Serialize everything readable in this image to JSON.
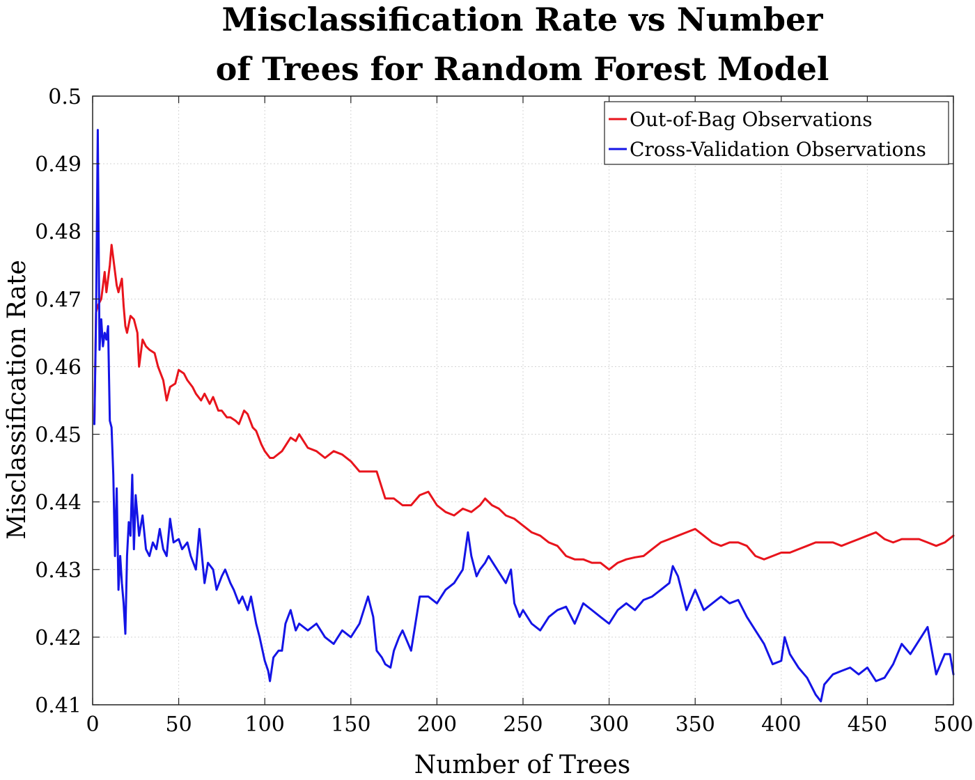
{
  "chart_data": {
    "type": "line",
    "title": [
      "Misclassification Rate vs Number",
      "of Trees for Random Forest Model"
    ],
    "xlabel": "Number of Trees",
    "ylabel": "Misclassification Rate",
    "xlim": [
      0,
      500
    ],
    "ylim": [
      0.41,
      0.5
    ],
    "x_ticks": [
      0,
      50,
      100,
      150,
      200,
      250,
      300,
      350,
      400,
      450,
      500
    ],
    "x_tick_labels": [
      "0",
      "50",
      "100",
      "150",
      "200",
      "250",
      "300",
      "350",
      "400",
      "450",
      "500"
    ],
    "y_ticks": [
      0.41,
      0.42,
      0.43,
      0.44,
      0.45,
      0.46,
      0.47,
      0.48,
      0.49,
      0.5
    ],
    "y_tick_labels": [
      "0.41",
      "0.42",
      "0.43",
      "0.44",
      "0.45",
      "0.46",
      "0.47",
      "0.48",
      "0.49",
      "0.5"
    ],
    "grid": true,
    "legend_position": "top-right",
    "series": [
      {
        "name": "Out-of-Bag Observations",
        "color": "#e8141c",
        "x": [
          1,
          2,
          3,
          5,
          7,
          8,
          10,
          11,
          12,
          14,
          15,
          17,
          18,
          19,
          20,
          22,
          24,
          26,
          27,
          29,
          31,
          33,
          36,
          38,
          41,
          43,
          45,
          48,
          50,
          53,
          55,
          58,
          60,
          63,
          65,
          68,
          70,
          73,
          75,
          78,
          80,
          83,
          85,
          88,
          90,
          93,
          95,
          98,
          100,
          103,
          105,
          110,
          115,
          118,
          120,
          125,
          130,
          135,
          140,
          145,
          150,
          155,
          160,
          165,
          170,
          175,
          180,
          185,
          190,
          195,
          200,
          205,
          210,
          215,
          220,
          225,
          228,
          232,
          236,
          240,
          245,
          250,
          255,
          260,
          265,
          270,
          275,
          280,
          285,
          290,
          295,
          300,
          305,
          310,
          315,
          320,
          325,
          330,
          335,
          340,
          345,
          350,
          355,
          360,
          365,
          370,
          375,
          380,
          385,
          390,
          395,
          400,
          405,
          410,
          415,
          420,
          425,
          430,
          435,
          440,
          445,
          450,
          455,
          460,
          465,
          470,
          475,
          480,
          485,
          490,
          495,
          500
        ],
        "y": [
          0.452,
          0.468,
          0.469,
          0.47,
          0.474,
          0.471,
          0.475,
          0.478,
          0.476,
          0.472,
          0.471,
          0.473,
          0.469,
          0.466,
          0.465,
          0.4675,
          0.467,
          0.465,
          0.46,
          0.464,
          0.463,
          0.4625,
          0.462,
          0.46,
          0.458,
          0.455,
          0.457,
          0.4575,
          0.4595,
          0.459,
          0.458,
          0.457,
          0.456,
          0.455,
          0.456,
          0.4545,
          0.4555,
          0.4535,
          0.4535,
          0.4525,
          0.4525,
          0.452,
          0.4515,
          0.4535,
          0.453,
          0.451,
          0.4505,
          0.4485,
          0.4475,
          0.4465,
          0.4465,
          0.4475,
          0.4495,
          0.449,
          0.45,
          0.448,
          0.4475,
          0.4465,
          0.4475,
          0.447,
          0.446,
          0.4445,
          0.4445,
          0.4445,
          0.4405,
          0.4405,
          0.4395,
          0.4395,
          0.441,
          0.4415,
          0.4395,
          0.4385,
          0.438,
          0.439,
          0.4385,
          0.4395,
          0.4405,
          0.4395,
          0.439,
          0.438,
          0.4375,
          0.4365,
          0.4355,
          0.435,
          0.434,
          0.4335,
          0.432,
          0.4315,
          0.4315,
          0.431,
          0.431,
          0.43,
          0.431,
          0.4315,
          0.4318,
          0.432,
          0.433,
          0.434,
          0.4345,
          0.435,
          0.4355,
          0.436,
          0.435,
          0.434,
          0.4335,
          0.434,
          0.434,
          0.4335,
          0.432,
          0.4315,
          0.432,
          0.4325,
          0.4325,
          0.433,
          0.4335,
          0.434,
          0.434,
          0.434,
          0.4335,
          0.434,
          0.4345,
          0.435,
          0.4355,
          0.4345,
          0.434,
          0.4345,
          0.4345,
          0.4345,
          0.434,
          0.4335,
          0.434,
          0.435
        ]
      },
      {
        "name": "Cross-Validation Observations",
        "color": "#1414e6",
        "x": [
          1,
          2,
          3,
          4,
          5,
          6,
          7,
          8,
          9,
          10,
          11,
          12,
          13,
          14,
          15,
          16,
          17,
          18,
          19,
          20,
          21,
          22,
          23,
          24,
          25,
          27,
          29,
          31,
          33,
          35,
          37,
          39,
          41,
          43,
          45,
          47,
          50,
          52,
          55,
          57,
          60,
          62,
          65,
          67,
          70,
          72,
          75,
          77,
          80,
          82,
          85,
          87,
          90,
          92,
          95,
          97,
          100,
          102,
          103,
          105,
          108,
          110,
          112,
          115,
          118,
          120,
          125,
          130,
          135,
          140,
          145,
          150,
          155,
          160,
          163,
          165,
          168,
          170,
          173,
          175,
          178,
          180,
          185,
          190,
          195,
          200,
          205,
          210,
          215,
          218,
          220,
          223,
          225,
          228,
          230,
          235,
          240,
          243,
          245,
          248,
          250,
          255,
          260,
          265,
          270,
          275,
          280,
          285,
          290,
          295,
          300,
          305,
          310,
          315,
          320,
          325,
          330,
          335,
          337,
          340,
          345,
          350,
          355,
          360,
          365,
          370,
          375,
          380,
          385,
          390,
          395,
          400,
          402,
          405,
          410,
          415,
          420,
          423,
          425,
          430,
          435,
          440,
          445,
          450,
          455,
          460,
          465,
          470,
          475,
          480,
          485,
          490,
          495,
          498,
          500
        ],
        "y": [
          0.4515,
          0.467,
          0.495,
          0.4625,
          0.467,
          0.463,
          0.465,
          0.464,
          0.466,
          0.452,
          0.451,
          0.444,
          0.432,
          0.442,
          0.427,
          0.432,
          0.428,
          0.425,
          0.4205,
          0.432,
          0.437,
          0.435,
          0.444,
          0.433,
          0.441,
          0.435,
          0.438,
          0.433,
          0.432,
          0.434,
          0.433,
          0.436,
          0.433,
          0.432,
          0.4375,
          0.434,
          0.4345,
          0.433,
          0.434,
          0.432,
          0.43,
          0.436,
          0.428,
          0.431,
          0.43,
          0.427,
          0.429,
          0.43,
          0.428,
          0.427,
          0.425,
          0.426,
          0.424,
          0.426,
          0.422,
          0.42,
          0.4165,
          0.415,
          0.4135,
          0.417,
          0.418,
          0.418,
          0.422,
          0.424,
          0.421,
          0.422,
          0.421,
          0.422,
          0.42,
          0.419,
          0.421,
          0.42,
          0.422,
          0.426,
          0.423,
          0.418,
          0.417,
          0.416,
          0.4155,
          0.418,
          0.42,
          0.421,
          0.418,
          0.426,
          0.426,
          0.425,
          0.427,
          0.428,
          0.43,
          0.4355,
          0.432,
          0.429,
          0.43,
          0.431,
          0.432,
          0.43,
          0.428,
          0.43,
          0.425,
          0.423,
          0.424,
          0.422,
          0.421,
          0.423,
          0.424,
          0.4245,
          0.422,
          0.425,
          0.424,
          0.423,
          0.422,
          0.424,
          0.425,
          0.424,
          0.4255,
          0.426,
          0.427,
          0.428,
          0.4305,
          0.429,
          0.424,
          0.427,
          0.424,
          0.425,
          0.426,
          0.425,
          0.4255,
          0.423,
          0.421,
          0.419,
          0.416,
          0.4165,
          0.42,
          0.4175,
          0.4155,
          0.414,
          0.4115,
          0.4105,
          0.413,
          0.4145,
          0.415,
          0.4155,
          0.4145,
          0.4155,
          0.4135,
          0.414,
          0.416,
          0.419,
          0.4175,
          0.4195,
          0.4215,
          0.4145,
          0.4175,
          0.4175,
          0.4145
        ]
      }
    ]
  }
}
